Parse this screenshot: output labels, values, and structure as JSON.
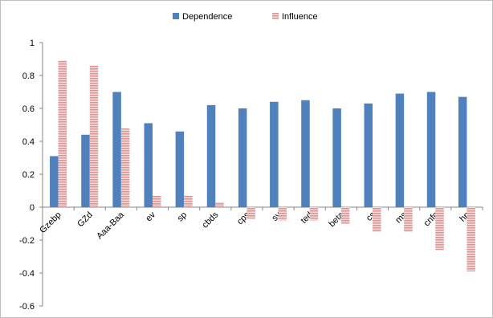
{
  "chart_data": {
    "type": "bar",
    "title": "",
    "xlabel": "",
    "ylabel": "",
    "ylim": [
      -0.6,
      1
    ],
    "yticks": [
      -0.6,
      -0.4,
      -0.2,
      0,
      0.2,
      0.4,
      0.6,
      0.8,
      1
    ],
    "ytick_labels": [
      "-0.6",
      "-0.4",
      "-0.2",
      "0",
      "0.2",
      "0.4",
      "0.6",
      "0.8",
      "1"
    ],
    "grid": false,
    "legend_position": "top",
    "categories": [
      "Gzebp",
      "GZd",
      "Aaa-Baa",
      "ev",
      "sp",
      "cbds",
      "cps",
      "sv",
      "ted",
      "beta",
      "cs",
      "ms",
      "cnfc",
      "hp"
    ],
    "series": [
      {
        "name": "Dependence",
        "color": "#4f81bd",
        "pattern": "solid",
        "values": [
          0.31,
          0.44,
          0.7,
          0.51,
          0.46,
          0.62,
          0.6,
          0.64,
          0.65,
          0.6,
          0.63,
          0.69,
          0.7,
          0.67
        ]
      },
      {
        "name": "Influence",
        "color": "#d99694",
        "pattern": "hatched",
        "values": [
          0.89,
          0.86,
          0.48,
          0.07,
          0.07,
          0.03,
          -0.07,
          -0.08,
          -0.08,
          -0.1,
          -0.15,
          -0.15,
          -0.26,
          -0.39
        ]
      }
    ]
  }
}
